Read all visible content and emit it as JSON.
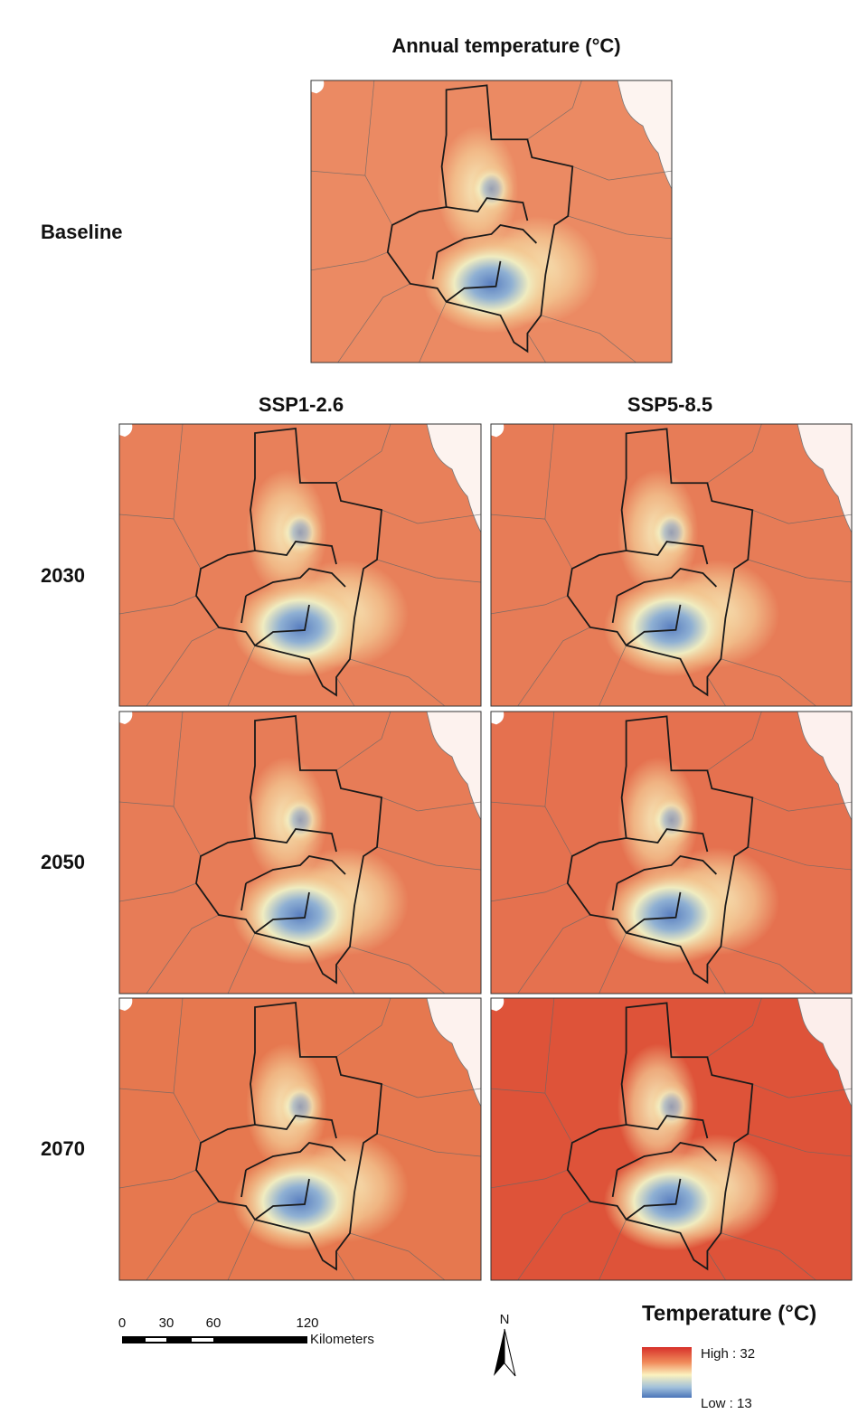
{
  "title": "Annual temperature (°C)",
  "rows": [
    "Baseline",
    "2030",
    "2050",
    "2070"
  ],
  "columns": [
    "SSP1-2.6",
    "SSP5-8.5"
  ],
  "scale_bar": {
    "ticks": [
      "0",
      "30",
      "60",
      "120"
    ],
    "unit": "Kilometers"
  },
  "north_arrow": "N",
  "legend": {
    "title": "Temperature (°C)",
    "high": "High : 32",
    "low": "Low : 13"
  }
}
